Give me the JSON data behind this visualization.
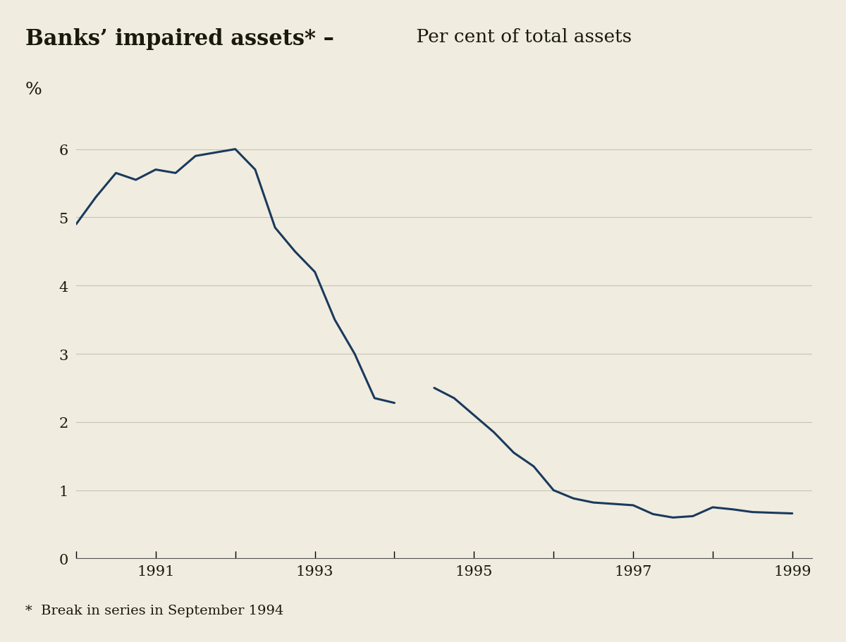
{
  "title_bold": "Banks’ impaired assets* –",
  "title_regular": " Per cent of total assets",
  "ylabel": "%",
  "footnote": "*  Break in series in September 1994",
  "header_bg_color": "#d4b97a",
  "plot_bg_color": "#f0ece0",
  "line_color": "#1a3a5c",
  "line_width": 2.2,
  "ylim": [
    0,
    6.5
  ],
  "yticks": [
    0,
    1,
    2,
    3,
    4,
    5,
    6
  ],
  "x_data": [
    1990.0,
    1990.25,
    1990.5,
    1990.75,
    1991.0,
    1991.25,
    1991.5,
    1991.75,
    1992.0,
    1992.25,
    1992.5,
    1992.75,
    1993.0,
    1993.25,
    1993.5,
    1993.75,
    1994.0,
    1994.5,
    1994.75,
    1995.0,
    1995.25,
    1995.5,
    1995.75,
    1996.0,
    1996.25,
    1996.5,
    1996.75,
    1997.0,
    1997.25,
    1997.5,
    1997.75,
    1998.0,
    1998.25,
    1998.5,
    1998.75,
    1999.0
  ],
  "y_data": [
    4.9,
    5.3,
    5.65,
    5.55,
    5.7,
    5.65,
    5.9,
    5.95,
    6.0,
    5.7,
    4.85,
    4.5,
    4.2,
    3.5,
    3.0,
    2.35,
    2.28,
    2.5,
    2.35,
    2.1,
    1.85,
    1.55,
    1.35,
    1.0,
    0.88,
    0.82,
    0.8,
    0.78,
    0.65,
    0.6,
    0.62,
    0.75,
    0.72,
    0.68,
    0.67,
    0.66
  ],
  "break_x_end": 1994.0,
  "break_x_start": 1994.5,
  "xmin": 1990.0,
  "xmax": 1999.25,
  "xtick_positions": [
    1990.0,
    1991.0,
    1992.0,
    1993.0,
    1994.0,
    1995.0,
    1996.0,
    1997.0,
    1998.0,
    1999.0
  ],
  "xtick_labels": [
    "",
    "1991",
    "",
    "1993",
    "",
    "1995",
    "",
    "1997",
    "",
    "1999"
  ]
}
